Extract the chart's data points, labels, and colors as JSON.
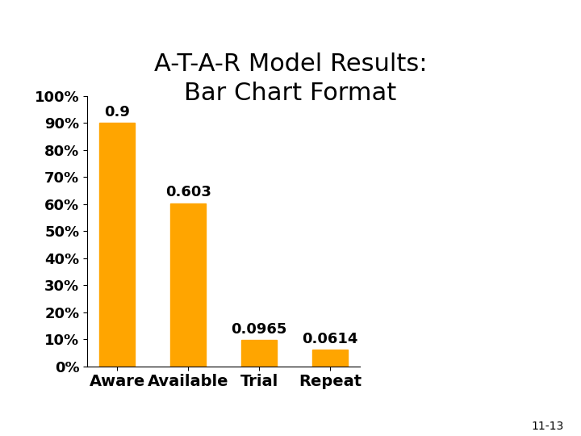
{
  "title": "A-T-A-R Model Results:\nBar Chart Format",
  "categories": [
    "Aware",
    "Available",
    "Trial",
    "Repeat"
  ],
  "values": [
    0.9,
    0.603,
    0.0965,
    0.0614
  ],
  "bar_color": "#FFA500",
  "bar_edge_color": "#FFA500",
  "ylim": [
    0,
    1.0
  ],
  "yticks": [
    0.0,
    0.1,
    0.2,
    0.3,
    0.4,
    0.5,
    0.6,
    0.7,
    0.8,
    0.9,
    1.0
  ],
  "yticklabels": [
    "0%",
    "10%",
    "20%",
    "30%",
    "40%",
    "50%",
    "60%",
    "70%",
    "80%",
    "90%",
    "100%"
  ],
  "value_labels": [
    "0.9",
    "0.603",
    "0.0965",
    "0.0614"
  ],
  "annotation": "11-13",
  "background_color": "#ffffff",
  "title_fontsize": 22,
  "tick_fontsize": 13,
  "label_fontsize": 14,
  "value_fontsize": 13,
  "annotation_fontsize": 10,
  "bar_width": 0.5
}
